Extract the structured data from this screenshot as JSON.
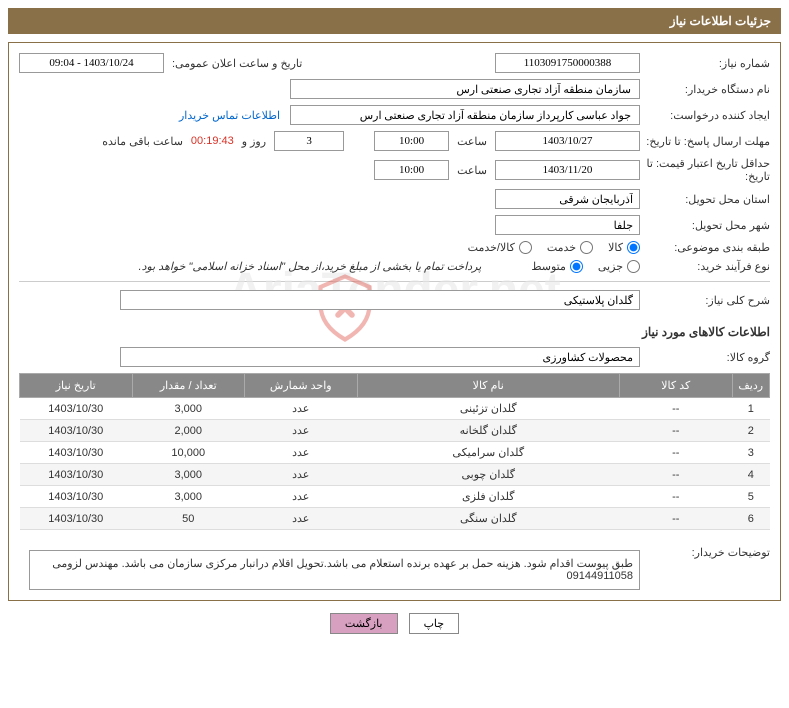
{
  "header": {
    "title": "جزئیات اطلاعات نیاز"
  },
  "fields": {
    "requestNumber": {
      "label": "شماره نیاز:",
      "value": "1103091750000388"
    },
    "publicDateLabel": "تاریخ و ساعت اعلان عمومی:",
    "publicDate": "1403/10/24 - 09:04",
    "buyerOrg": {
      "label": "نام دستگاه خریدار:",
      "value": "سازمان منطقه آزاد تجاری صنعتی ارس"
    },
    "requester": {
      "label": "ایجاد کننده درخواست:",
      "value": "جواد عباسی کارپرداز سازمان منطقه آزاد تجاری صنعتی ارس"
    },
    "contactLink": "اطلاعات تماس خریدار",
    "deadline": {
      "label": "مهلت ارسال پاسخ: تا تاریخ:",
      "date": "1403/10/27",
      "timeLabel": "ساعت",
      "time": "10:00"
    },
    "countdown": {
      "days": "3",
      "daysLabel": "روز و",
      "time": "00:19:43",
      "remainLabel": "ساعت باقی مانده"
    },
    "validity": {
      "label": "حداقل تاریخ اعتبار قیمت: تا تاریخ:",
      "date": "1403/11/20",
      "timeLabel": "ساعت",
      "time": "10:00"
    },
    "province": {
      "label": "استان محل تحویل:",
      "value": "آذربایجان شرقی"
    },
    "city": {
      "label": "شهر محل تحویل:",
      "value": "جلفا"
    },
    "category": {
      "label": "طبقه بندی موضوعی:",
      "options": [
        "کالا",
        "خدمت",
        "کالا/خدمت"
      ],
      "selected": 0
    },
    "purchaseType": {
      "label": "نوع فرآیند خرید:",
      "options": [
        "جزیی",
        "متوسط"
      ],
      "selected": 1,
      "note": "پرداخت تمام یا بخشی از مبلغ خرید،از محل \"اسناد خزانه اسلامی\" خواهد بود."
    },
    "generalDesc": {
      "label": "شرح کلی نیاز:",
      "value": "گلدان پلاستیکی"
    },
    "goodsGroup": {
      "label": "گروه کالا:",
      "value": "محصولات کشاورزی"
    },
    "buyerNotes": {
      "label": "توضیحات خریدار:",
      "value": "طبق پیوست اقدام شود. هزینه حمل بر عهده برنده استعلام می باشد.تحویل اقلام درانبار مرکزی سازمان می باشد. مهندس لزومی 09144911058"
    }
  },
  "sectionTitles": {
    "goodsInfo": "اطلاعات کالاهای مورد نیاز"
  },
  "table": {
    "columns": [
      "ردیف",
      "کد کالا",
      "نام کالا",
      "واحد شمارش",
      "تعداد / مقدار",
      "تاریخ نیاز"
    ],
    "colWidths": [
      "5%",
      "15%",
      "35%",
      "15%",
      "15%",
      "15%"
    ],
    "rows": [
      [
        "1",
        "--",
        "گلدان تزئینی",
        "عدد",
        "3,000",
        "1403/10/30"
      ],
      [
        "2",
        "--",
        "گلدان گلخانه",
        "عدد",
        "2,000",
        "1403/10/30"
      ],
      [
        "3",
        "--",
        "گلدان سرامیکی",
        "عدد",
        "10,000",
        "1403/10/30"
      ],
      [
        "4",
        "--",
        "گلدان چوبی",
        "عدد",
        "3,000",
        "1403/10/30"
      ],
      [
        "5",
        "--",
        "گلدان فلزی",
        "عدد",
        "3,000",
        "1403/10/30"
      ],
      [
        "6",
        "--",
        "گلدان سنگی",
        "عدد",
        "50",
        "1403/10/30"
      ]
    ]
  },
  "buttons": {
    "print": "چاپ",
    "back": "بازگشت"
  },
  "watermark": "AriaTender.net",
  "colors": {
    "headerBg": "#8a7049",
    "headerText": "#ffffff",
    "border": "#8a7049",
    "tableHeaderBg": "#888888",
    "link": "#0066cc",
    "countdown": "#d93025",
    "btnBack": "#d8a0c0"
  }
}
